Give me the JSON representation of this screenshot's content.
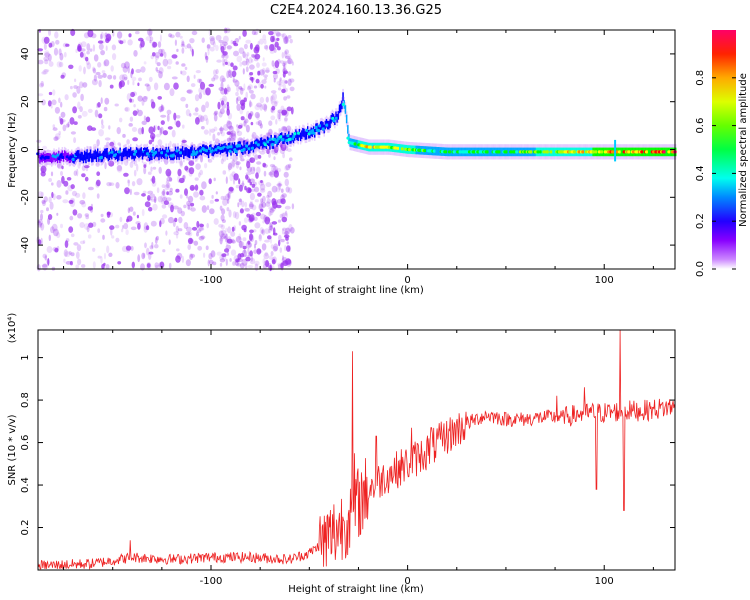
{
  "title": "C2E4.2024.160.13.36.G25",
  "colors": {
    "snr_line": "#ee2222",
    "spectrum_scatter": "#9933ee",
    "colormap": [
      "#cc88ff",
      "#8800ff",
      "#0000ff",
      "#00aaff",
      "#00ffdd",
      "#00ff00",
      "#aaff00",
      "#ffff00",
      "#ff8800",
      "#ff0000",
      "#ff0066"
    ]
  },
  "chart_data": [
    {
      "type": "heatmap",
      "name": "spectrogram",
      "xlabel": "Height of straight line (km)",
      "ylabel": "Frequency (Hz)",
      "xlim": [
        -188,
        136
      ],
      "ylim": [
        -50,
        50
      ],
      "xticks": [
        {
          "value": -100,
          "label": "-100"
        },
        {
          "value": 0,
          "label": "0"
        },
        {
          "value": 100,
          "label": "100"
        }
      ],
      "yticks": [
        {
          "value": -40,
          "label": "-40"
        },
        {
          "value": -20,
          "label": "-20"
        },
        {
          "value": 0,
          "label": "0"
        },
        {
          "value": 20,
          "label": "20"
        },
        {
          "value": 40,
          "label": "40"
        }
      ],
      "colorbar": {
        "label": "Normalized spectral amplitude",
        "range": [
          0,
          1
        ],
        "ticks": [
          {
            "value": 0.0,
            "label": "0.0"
          },
          {
            "value": 0.2,
            "label": "0.2"
          },
          {
            "value": 0.4,
            "label": "0.4"
          },
          {
            "value": 0.6,
            "label": "0.6"
          },
          {
            "value": 0.8,
            "label": "0.8"
          }
        ]
      },
      "ridge": {
        "description_points": [
          {
            "x": -188,
            "y": -3
          },
          {
            "x": -170,
            "y": -3
          },
          {
            "x": -150,
            "y": -2
          },
          {
            "x": -130,
            "y": -2
          },
          {
            "x": -110,
            "y": -1
          },
          {
            "x": -90,
            "y": 0
          },
          {
            "x": -75,
            "y": 2
          },
          {
            "x": -60,
            "y": 5
          },
          {
            "x": -50,
            "y": 7
          },
          {
            "x": -42,
            "y": 10
          },
          {
            "x": -36,
            "y": 14
          },
          {
            "x": -33,
            "y": 22
          },
          {
            "x": -30,
            "y": 3
          },
          {
            "x": -20,
            "y": 1
          },
          {
            "x": -10,
            "y": 1
          },
          {
            "x": 0,
            "y": 0
          },
          {
            "x": 20,
            "y": -1
          },
          {
            "x": 50,
            "y": -1
          },
          {
            "x": 80,
            "y": -1
          },
          {
            "x": 105,
            "y": -1
          },
          {
            "x": 136,
            "y": -1
          }
        ],
        "amplitude_points": [
          {
            "x": -188,
            "a": 0.25
          },
          {
            "x": -150,
            "a": 0.3
          },
          {
            "x": -110,
            "a": 0.35
          },
          {
            "x": -80,
            "a": 0.35
          },
          {
            "x": -60,
            "a": 0.4
          },
          {
            "x": -40,
            "a": 0.35
          },
          {
            "x": -30,
            "a": 0.5
          },
          {
            "x": -20,
            "a": 0.8
          },
          {
            "x": -5,
            "a": 0.75
          },
          {
            "x": 10,
            "a": 0.55
          },
          {
            "x": 30,
            "a": 0.5
          },
          {
            "x": 60,
            "a": 0.6
          },
          {
            "x": 80,
            "a": 0.75
          },
          {
            "x": 100,
            "a": 0.85
          },
          {
            "x": 120,
            "a": 0.95
          },
          {
            "x": 136,
            "a": 1.0
          }
        ]
      }
    },
    {
      "type": "line",
      "name": "snr",
      "xlabel": "Height of straight line (km)",
      "ylabel": "SNR (10 * v/v)",
      "y_multiplier": "(x10⁴)",
      "xlim": [
        -188,
        136
      ],
      "ylim": [
        0,
        1.13
      ],
      "xticks": [
        {
          "value": -100,
          "label": "-100"
        },
        {
          "value": 0,
          "label": "0"
        },
        {
          "value": 100,
          "label": "100"
        }
      ],
      "yticks": [
        {
          "value": 0.2,
          "label": "0.2"
        },
        {
          "value": 0.4,
          "label": "0.4"
        },
        {
          "value": 0.6,
          "label": "0.6"
        },
        {
          "value": 0.8,
          "label": "0.8"
        },
        {
          "value": 1.0,
          "label": "1"
        }
      ],
      "series": [
        {
          "baseline_points": [
            {
              "x": -188,
              "y": 0.02
            },
            {
              "x": -160,
              "y": 0.03
            },
            {
              "x": -140,
              "y": 0.06
            },
            {
              "x": -120,
              "y": 0.05
            },
            {
              "x": -100,
              "y": 0.06
            },
            {
              "x": -80,
              "y": 0.06
            },
            {
              "x": -60,
              "y": 0.05
            },
            {
              "x": -50,
              "y": 0.08
            },
            {
              "x": -40,
              "y": 0.15
            },
            {
              "x": -30,
              "y": 0.25
            },
            {
              "x": -20,
              "y": 0.38
            },
            {
              "x": -10,
              "y": 0.45
            },
            {
              "x": 0,
              "y": 0.5
            },
            {
              "x": 10,
              "y": 0.56
            },
            {
              "x": 20,
              "y": 0.63
            },
            {
              "x": 30,
              "y": 0.69
            },
            {
              "x": 40,
              "y": 0.73
            },
            {
              "x": 50,
              "y": 0.71
            },
            {
              "x": 60,
              "y": 0.71
            },
            {
              "x": 70,
              "y": 0.72
            },
            {
              "x": 80,
              "y": 0.72
            },
            {
              "x": 90,
              "y": 0.74
            },
            {
              "x": 100,
              "y": 0.74
            },
            {
              "x": 110,
              "y": 0.75
            },
            {
              "x": 120,
              "y": 0.75
            },
            {
              "x": 136,
              "y": 0.77
            }
          ],
          "spikes": [
            {
              "x": -141,
              "y": 0.14
            },
            {
              "x": -28,
              "y": 1.03
            },
            {
              "x": -27,
              "y": 0.55
            },
            {
              "x": -16,
              "y": 0.63
            },
            {
              "x": 2,
              "y": 0.67
            },
            {
              "x": 12,
              "y": 0.67
            },
            {
              "x": 76,
              "y": 0.82
            },
            {
              "x": 90,
              "y": 0.86
            },
            {
              "x": 96,
              "y": 0.38
            },
            {
              "x": 108,
              "y": 1.13
            },
            {
              "x": 110,
              "y": 0.28
            }
          ]
        }
      ]
    }
  ]
}
